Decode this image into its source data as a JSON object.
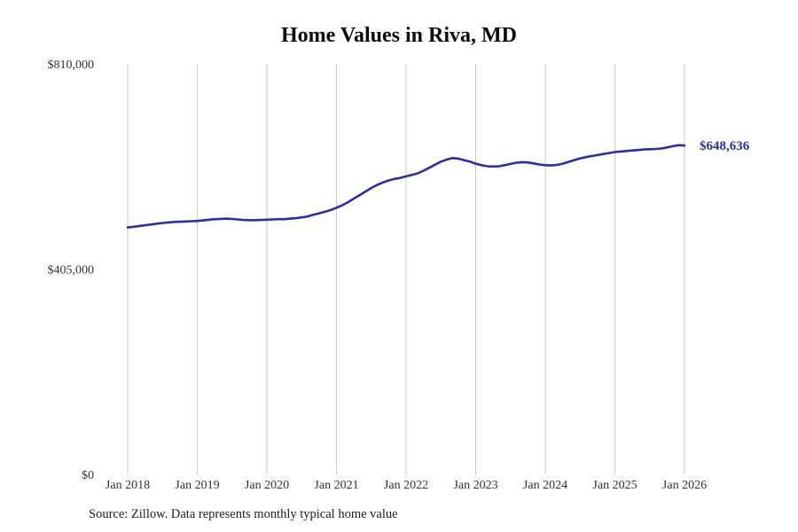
{
  "chart_data": {
    "type": "line",
    "title": "Home Values in Riva, MD",
    "source": "Source: Zillow. Data represents monthly typical home value",
    "xlabel": "",
    "ylabel": "",
    "ylim": [
      0,
      810000
    ],
    "grid": "vertical-only",
    "legend": "none",
    "colors": {
      "line": "#2e2e9d",
      "gridline": "#c9c9c9",
      "text": "#333333"
    },
    "x_ticks": [
      "Jan 2018",
      "Jan 2019",
      "Jan 2020",
      "Jan 2021",
      "Jan 2022",
      "Jan 2023",
      "Jan 2024",
      "Jan 2025",
      "Jan 2026"
    ],
    "y_ticks": [
      {
        "label": "$0",
        "value": 0
      },
      {
        "label": "$405,000",
        "value": 405000
      },
      {
        "label": "$810,000",
        "value": 810000
      }
    ],
    "end_label": "$648,636",
    "end_value": 648636,
    "series": [
      {
        "name": "Typical home value",
        "color": "#2e2e9d",
        "x_start": "Jan 2018",
        "frequency": "monthly",
        "values": [
          487000,
          488500,
          490000,
          491500,
          493000,
          494500,
          496000,
          497000,
          498000,
          498500,
          499000,
          499500,
          500000,
          501000,
          502500,
          503500,
          504000,
          504500,
          504000,
          503000,
          502000,
          501500,
          501500,
          502000,
          502500,
          503000,
          503500,
          503500,
          504500,
          505500,
          507000,
          509000,
          512000,
          515000,
          518000,
          521500,
          526000,
          531000,
          537000,
          544000,
          551000,
          558000,
          565000,
          571000,
          576000,
          580000,
          583000,
          585000,
          588000,
          591000,
          594000,
          599000,
          605000,
          611000,
          617000,
          621000,
          624000,
          623000,
          620000,
          617000,
          613000,
          610000,
          608000,
          607500,
          608000,
          610000,
          612500,
          615000,
          616000,
          615500,
          613500,
          611500,
          610000,
          609500,
          610500,
          613000,
          616500,
          620000,
          623500,
          626000,
          628000,
          630000,
          632000,
          634000,
          636000,
          637000,
          638000,
          639000,
          640000,
          641000,
          641500,
          642000,
          643000,
          645000,
          647500,
          649500,
          648636
        ]
      }
    ]
  }
}
